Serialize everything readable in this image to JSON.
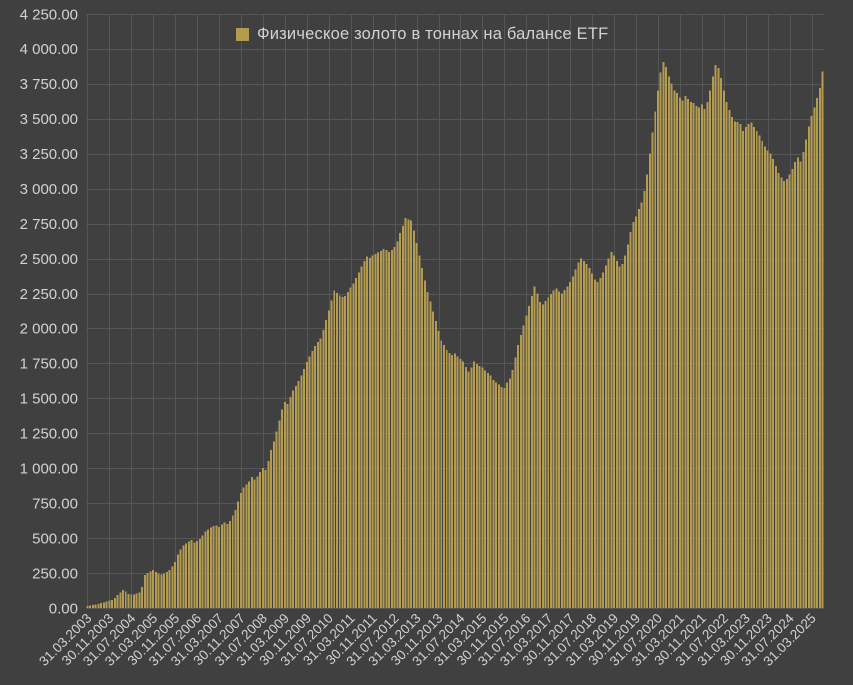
{
  "legend": {
    "label": "Физическое золото в тоннах на балансе ETF"
  },
  "colors": {
    "background": "#404040",
    "gridline": "#565656",
    "axis_text": "#d2d2d2",
    "bar": "#b39b4f"
  },
  "chart_data": {
    "type": "bar",
    "title": "",
    "series_name": "Физическое золото в тоннах на балансе ETF",
    "unit": "tonnes",
    "frequency": "monthly",
    "start_month": "2003-03",
    "end_month": "2025-07",
    "ylim": [
      0,
      4250
    ],
    "y_tick_step": 250,
    "grid": true,
    "legend_position": "top-center",
    "y_ticks": [
      "0.00",
      "250.00",
      "500.00",
      "750.00",
      "1 000.00",
      "1 250.00",
      "1 500.00",
      "1 750.00",
      "2 000.00",
      "2 250.00",
      "2 500.00",
      "2 750.00",
      "3 000.00",
      "3 250.00",
      "3 500.00",
      "3 750.00",
      "4 000.00",
      "4 250.00"
    ],
    "x_ticks": [
      "31.03.2003",
      "30.11.2003",
      "31.07.2004",
      "31.03.2005",
      "30.11.2005",
      "31.07.2006",
      "31.03.2007",
      "30.11.2007",
      "31.07.2008",
      "31.03.2009",
      "30.11.2009",
      "31.07.2010",
      "31.03.2011",
      "30.11.2011",
      "31.07.2012",
      "31.03.2013",
      "30.11.2013",
      "31.07.2014",
      "31.03.2015",
      "30.11.2015",
      "31.07.2016",
      "31.03.2017",
      "30.11.2017",
      "31.07.2018",
      "31.03.2019",
      "30.11.2019",
      "31.07.2020",
      "31.03.2021",
      "30.11.2021",
      "31.07.2022",
      "31.03.2023",
      "30.11.2023",
      "31.07.2024",
      "31.03.2025"
    ],
    "x_tick_every_n_months": 8,
    "values": [
      15,
      18,
      22,
      26,
      30,
      35,
      40,
      46,
      52,
      58,
      72,
      92,
      112,
      128,
      118,
      100,
      96,
      98,
      104,
      112,
      150,
      235,
      250,
      262,
      272,
      258,
      246,
      240,
      248,
      258,
      272,
      296,
      330,
      382,
      420,
      446,
      462,
      476,
      486,
      470,
      478,
      492,
      520,
      546,
      562,
      576,
      586,
      592,
      580,
      596,
      610,
      600,
      622,
      662,
      702,
      762,
      822,
      862,
      882,
      906,
      936,
      920,
      942,
      972,
      1002,
      986,
      1052,
      1132,
      1192,
      1262,
      1340,
      1420,
      1475,
      1460,
      1510,
      1555,
      1590,
      1625,
      1665,
      1710,
      1760,
      1800,
      1840,
      1875,
      1905,
      1930,
      1990,
      2060,
      2130,
      2200,
      2273,
      2255,
      2235,
      2226,
      2232,
      2262,
      2292,
      2322,
      2362,
      2402,
      2442,
      2482,
      2515,
      2505,
      2522,
      2532,
      2542,
      2556,
      2570,
      2560,
      2546,
      2562,
      2582,
      2622,
      2682,
      2732,
      2790,
      2780,
      2772,
      2700,
      2612,
      2522,
      2432,
      2342,
      2262,
      2192,
      2122,
      2052,
      1982,
      1915,
      1880,
      1846,
      1826,
      1812,
      1822,
      1800,
      1782,
      1762,
      1726,
      1692,
      1722,
      1762,
      1746,
      1732,
      1720,
      1700,
      1682,
      1662,
      1632,
      1612,
      1600,
      1582,
      1573,
      1612,
      1642,
      1702,
      1792,
      1882,
      1952,
      2022,
      2092,
      2162,
      2232,
      2299,
      2252,
      2191,
      2172,
      2196,
      2222,
      2246,
      2272,
      2285,
      2266,
      2252,
      2276,
      2302,
      2332,
      2372,
      2422,
      2472,
      2499,
      2482,
      2462,
      2432,
      2392,
      2352,
      2333,
      2362,
      2402,
      2452,
      2502,
      2546,
      2522,
      2482,
      2442,
      2462,
      2522,
      2602,
      2692,
      2762,
      2802,
      2854,
      2902,
      2982,
      3102,
      3252,
      3402,
      3552,
      3702,
      3832,
      3905,
      3872,
      3802,
      3752,
      3702,
      3685,
      3652,
      3632,
      3662,
      3642,
      3622,
      3612,
      3592,
      3582,
      3602,
      3572,
      3622,
      3702,
      3802,
      3885,
      3865,
      3792,
      3702,
      3622,
      3562,
      3512,
      3482,
      3476,
      3462,
      3412,
      3442,
      3462,
      3472,
      3442,
      3412,
      3382,
      3342,
      3302,
      3272,
      3252,
      3212,
      3162,
      3112,
      3082,
      3054,
      3068,
      3102,
      3142,
      3192,
      3225,
      3196,
      3262,
      3352,
      3445,
      3519,
      3582,
      3650,
      3721,
      3839
    ]
  }
}
